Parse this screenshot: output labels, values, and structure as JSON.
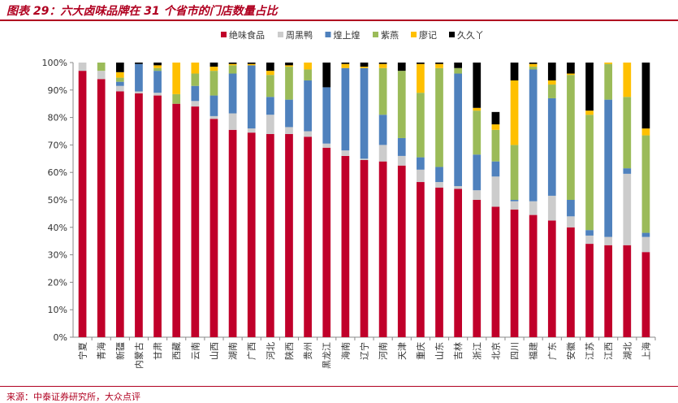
{
  "title": "图表 29：六大卤味品牌在 31 个省市的门店数量占比",
  "source": "来源：中泰证券研究所，大众点评",
  "chart_data": {
    "type": "bar",
    "stacked": true,
    "categories": [
      "宁夏",
      "青海",
      "新疆",
      "内蒙古",
      "甘肃",
      "西藏",
      "云南",
      "山西",
      "湖南",
      "广西",
      "河北",
      "陕西",
      "贵州",
      "黑龙江",
      "海南",
      "辽宁",
      "河南",
      "天津",
      "重庆",
      "山东",
      "吉林",
      "浙江",
      "北京",
      "四川",
      "福建",
      "广东",
      "安徽",
      "江苏",
      "江西",
      "湖北",
      "上海"
    ],
    "yticks": [
      "0%",
      "10%",
      "20%",
      "30%",
      "40%",
      "50%",
      "60%",
      "70%",
      "80%",
      "90%",
      "100%"
    ],
    "ylim": [
      0,
      100
    ],
    "legend_position": "top",
    "series": [
      {
        "name": "绝味食品",
        "color": "#c0002a",
        "values": [
          97,
          94,
          89.5,
          88.8,
          88,
          85,
          84,
          79.5,
          75.5,
          74.5,
          74,
          74,
          73,
          69,
          66,
          64.5,
          64,
          62.5,
          56.5,
          54.5,
          54,
          50,
          47.5,
          46.5,
          44.5,
          42.5,
          40,
          34,
          33.5,
          33.5,
          31
        ]
      },
      {
        "name": "周黑鸭",
        "color": "#cccccc",
        "values": [
          3,
          3,
          2,
          0.7,
          1,
          0,
          2,
          1,
          6,
          1.5,
          7,
          2.5,
          2,
          1.5,
          2,
          0.5,
          6,
          3.5,
          4.5,
          2,
          1,
          3.5,
          11,
          3,
          5,
          9,
          4,
          3,
          3,
          26,
          5.5
        ]
      },
      {
        "name": "煌上煌",
        "color": "#4f81bd",
        "values": [
          0,
          0,
          1.5,
          10,
          8,
          0,
          5.5,
          7.5,
          14.5,
          23,
          6.5,
          10,
          18.5,
          20.5,
          30,
          33,
          11,
          6.5,
          4.5,
          5.5,
          41,
          13,
          5.5,
          0.5,
          48,
          35.5,
          6,
          2,
          50,
          2,
          1.5
        ]
      },
      {
        "name": "紫燕",
        "color": "#9bbb59",
        "values": [
          0,
          3,
          1.5,
          0,
          1,
          3.5,
          4.5,
          9,
          3,
          0,
          8,
          12,
          4,
          0,
          0,
          0,
          17,
          24.5,
          23.5,
          36,
          2,
          16,
          11.5,
          20,
          1,
          5,
          45.5,
          42,
          13,
          26,
          35.5
        ]
      },
      {
        "name": "廖记",
        "color": "#ffc000",
        "values": [
          0,
          0,
          2,
          0,
          1,
          11.5,
          4,
          1.5,
          0.5,
          0.5,
          1.5,
          0.5,
          2.5,
          0,
          1.5,
          0.5,
          1.5,
          0,
          10.5,
          1.5,
          0,
          1,
          2,
          23.5,
          1,
          1.5,
          0.5,
          1.5,
          0.5,
          12.5,
          2.5
        ]
      },
      {
        "name": "久久丫",
        "color": "#000000",
        "values": [
          0,
          0,
          3.5,
          0.5,
          1,
          0,
          0,
          1.5,
          0.5,
          0.5,
          3,
          1,
          0,
          9,
          0.5,
          1.5,
          0.5,
          3,
          0.5,
          0.5,
          2,
          16.5,
          4.5,
          6.5,
          0.5,
          6.5,
          4,
          17.5,
          0,
          0,
          24
        ]
      }
    ]
  }
}
